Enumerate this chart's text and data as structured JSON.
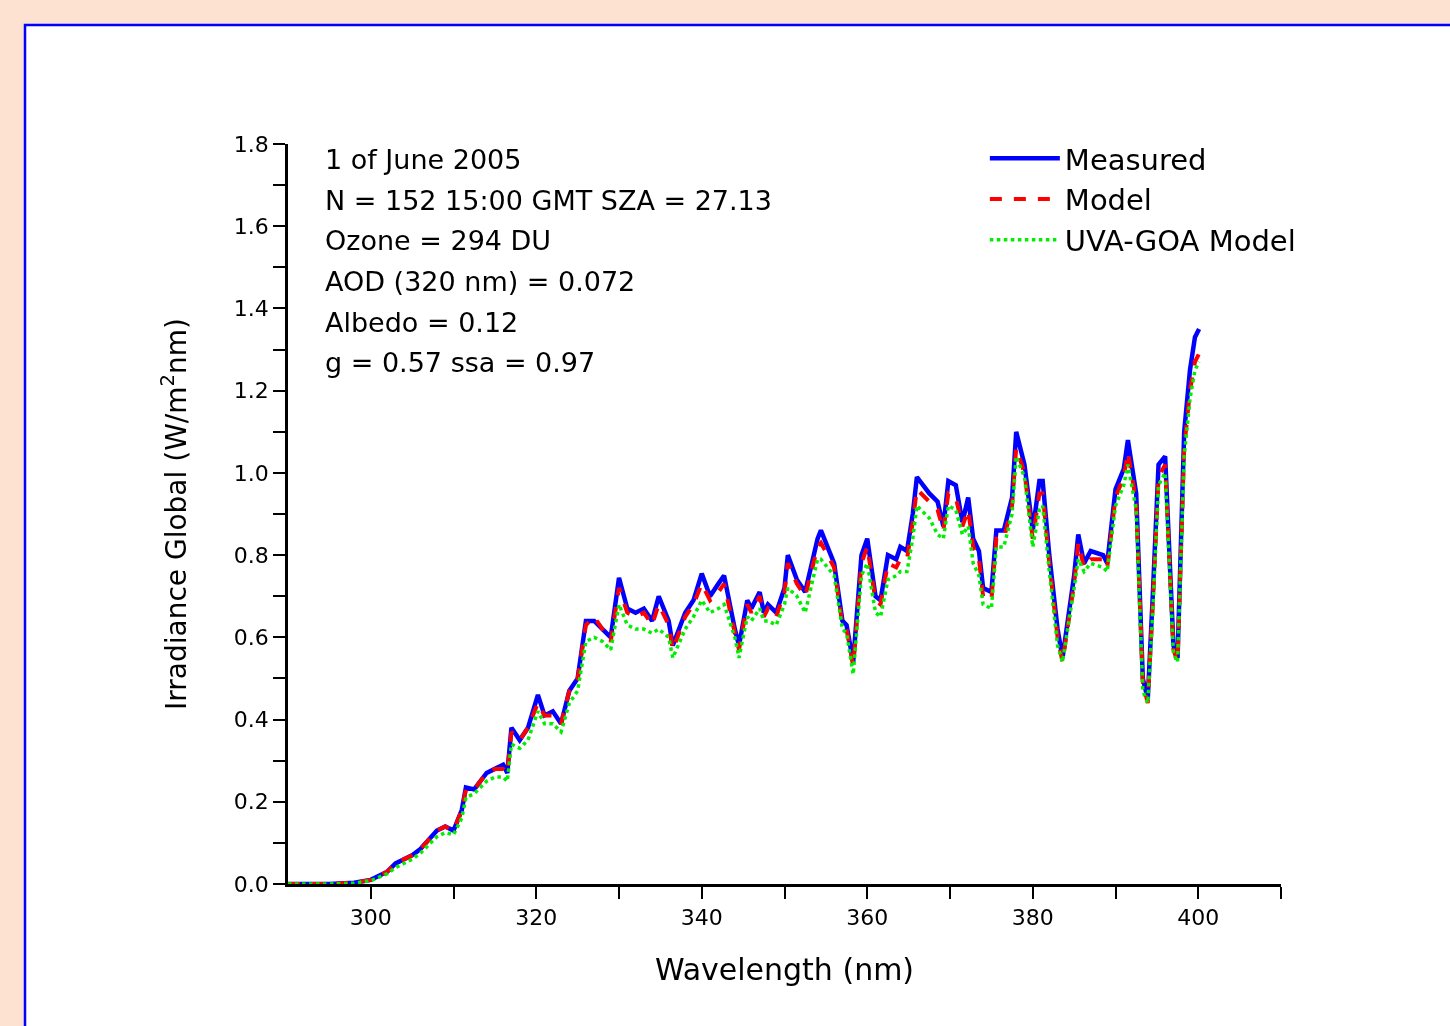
{
  "chart_data": {
    "type": "line",
    "xlabel": "Wavelength (nm)",
    "ylabel": "Irradiance Global (W/m$^{2}$nm)",
    "annotations": [
      "1 of June 2005",
      "N = 152 15:00 GMT SZA = 27.13",
      "Ozone = 294 DU",
      "AOD (320 nm) = 0.072",
      "Albedo = 0.12",
      "g = 0.57 ssa = 0.97"
    ],
    "x": [
      290,
      295,
      298,
      300,
      302,
      303,
      305,
      306,
      308,
      309,
      310,
      311,
      311.5,
      312.5,
      314,
      315,
      316,
      316.5,
      317,
      318,
      319,
      320.2,
      321,
      322,
      323,
      324,
      325,
      326,
      327,
      328,
      329,
      330,
      331,
      332,
      333,
      334,
      334.8,
      336,
      336.5,
      338,
      339,
      340,
      341,
      342,
      342.7,
      344,
      344.5,
      345.5,
      346,
      347,
      347.5,
      348,
      349,
      350,
      350.4,
      351.5,
      352.5,
      354,
      354.4,
      356,
      357,
      357.5,
      358.3,
      359.3,
      360,
      361,
      361.6,
      362.5,
      363.5,
      364,
      364.8,
      365.5,
      366,
      367.5,
      368.5,
      369.2,
      369.8,
      370.7,
      371.5,
      372.2,
      372.8,
      373.5,
      374,
      375,
      375.6,
      376.5,
      377.5,
      378,
      379,
      380,
      380.8,
      381.2,
      382,
      383,
      383.6,
      385,
      385.5,
      386.2,
      387,
      388.5,
      389,
      390,
      391,
      391.5,
      392.5,
      393.3,
      393.9,
      394.5,
      395.2,
      396,
      397,
      397.5,
      398.3,
      399,
      399.6,
      400.1
    ],
    "series": [
      {
        "name": "Measured",
        "color": "#0000ff",
        "line_style": "solid",
        "values": [
          0,
          0,
          0.003,
          0.01,
          0.03,
          0.05,
          0.07,
          0.085,
          0.13,
          0.14,
          0.13,
          0.18,
          0.235,
          0.23,
          0.27,
          0.28,
          0.29,
          0.27,
          0.38,
          0.35,
          0.38,
          0.46,
          0.41,
          0.42,
          0.39,
          0.47,
          0.5,
          0.64,
          0.64,
          0.62,
          0.6,
          0.745,
          0.67,
          0.66,
          0.67,
          0.64,
          0.7,
          0.64,
          0.58,
          0.66,
          0.69,
          0.755,
          0.7,
          0.73,
          0.75,
          0.62,
          0.58,
          0.69,
          0.67,
          0.71,
          0.66,
          0.68,
          0.66,
          0.72,
          0.8,
          0.74,
          0.71,
          0.84,
          0.86,
          0.78,
          0.64,
          0.63,
          0.54,
          0.8,
          0.84,
          0.7,
          0.69,
          0.8,
          0.79,
          0.82,
          0.81,
          0.9,
          0.99,
          0.95,
          0.93,
          0.87,
          0.98,
          0.97,
          0.88,
          0.94,
          0.84,
          0.81,
          0.72,
          0.71,
          0.86,
          0.86,
          0.94,
          1.1,
          1.02,
          0.86,
          0.98,
          0.98,
          0.8,
          0.62,
          0.55,
          0.75,
          0.85,
          0.78,
          0.81,
          0.8,
          0.78,
          0.96,
          1.01,
          1.08,
          0.95,
          0.5,
          0.45,
          0.7,
          1.02,
          1.04,
          0.58,
          0.55,
          1.1,
          1.25,
          1.33,
          1.35
        ]
      },
      {
        "name": "Model",
        "color": "#ff0000",
        "line_style": "dashed",
        "values": [
          0,
          0,
          0.003,
          0.01,
          0.03,
          0.05,
          0.07,
          0.085,
          0.13,
          0.14,
          0.13,
          0.18,
          0.23,
          0.23,
          0.27,
          0.28,
          0.28,
          0.27,
          0.37,
          0.35,
          0.38,
          0.44,
          0.41,
          0.41,
          0.39,
          0.47,
          0.5,
          0.63,
          0.65,
          0.62,
          0.59,
          0.72,
          0.66,
          0.65,
          0.66,
          0.63,
          0.68,
          0.63,
          0.57,
          0.65,
          0.68,
          0.73,
          0.69,
          0.71,
          0.73,
          0.61,
          0.57,
          0.68,
          0.66,
          0.7,
          0.65,
          0.67,
          0.65,
          0.71,
          0.78,
          0.73,
          0.7,
          0.82,
          0.83,
          0.77,
          0.63,
          0.62,
          0.53,
          0.78,
          0.82,
          0.69,
          0.68,
          0.78,
          0.77,
          0.79,
          0.79,
          0.88,
          0.96,
          0.93,
          0.91,
          0.86,
          0.95,
          0.94,
          0.87,
          0.91,
          0.82,
          0.79,
          0.7,
          0.69,
          0.84,
          0.84,
          0.92,
          1.06,
          1.0,
          0.84,
          0.95,
          0.95,
          0.78,
          0.6,
          0.54,
          0.73,
          0.83,
          0.77,
          0.79,
          0.79,
          0.77,
          0.94,
          0.99,
          1.05,
          0.93,
          0.49,
          0.44,
          0.68,
          0.99,
          1.02,
          0.57,
          0.54,
          1.06,
          1.2,
          1.27,
          1.29
        ]
      },
      {
        "name": "UVA-GOA Model",
        "color": "#00ee00",
        "line_style": "dotted",
        "values": [
          0,
          0,
          0.002,
          0.008,
          0.025,
          0.04,
          0.06,
          0.075,
          0.115,
          0.125,
          0.12,
          0.16,
          0.21,
          0.22,
          0.25,
          0.26,
          0.26,
          0.25,
          0.34,
          0.33,
          0.35,
          0.42,
          0.39,
          0.39,
          0.37,
          0.44,
          0.47,
          0.59,
          0.6,
          0.59,
          0.57,
          0.68,
          0.63,
          0.62,
          0.62,
          0.61,
          0.62,
          0.6,
          0.55,
          0.62,
          0.65,
          0.69,
          0.66,
          0.67,
          0.68,
          0.6,
          0.55,
          0.65,
          0.64,
          0.67,
          0.64,
          0.64,
          0.63,
          0.68,
          0.72,
          0.7,
          0.66,
          0.79,
          0.79,
          0.75,
          0.62,
          0.61,
          0.51,
          0.75,
          0.78,
          0.66,
          0.65,
          0.74,
          0.75,
          0.76,
          0.76,
          0.84,
          0.92,
          0.89,
          0.85,
          0.84,
          0.92,
          0.91,
          0.85,
          0.87,
          0.78,
          0.75,
          0.68,
          0.67,
          0.82,
          0.82,
          0.9,
          1.04,
          0.99,
          0.82,
          0.91,
          0.92,
          0.76,
          0.58,
          0.54,
          0.72,
          0.79,
          0.76,
          0.78,
          0.77,
          0.76,
          0.92,
          0.97,
          1.02,
          0.91,
          0.47,
          0.44,
          0.66,
          0.97,
          1.0,
          0.56,
          0.54,
          1.04,
          1.18,
          1.25,
          1.27
        ]
      }
    ],
    "xlim": [
      290,
      410
    ],
    "xticks": [
      300,
      {
        "value": 310,
        "label": null
      },
      320,
      {
        "value": 330,
        "label": null
      },
      340,
      {
        "value": 350,
        "label": null
      },
      360,
      {
        "value": 370,
        "label": null
      },
      380,
      {
        "value": 390,
        "label": null
      },
      400,
      {
        "value": 410,
        "label": null
      }
    ],
    "ylim": [
      0,
      1.8
    ],
    "yticks": [
      {
        "value": 0,
        "label": "0.0"
      },
      {
        "value": 0.1,
        "label": null
      },
      {
        "value": 0.2,
        "label": "0.2"
      },
      {
        "value": 0.3,
        "label": null
      },
      {
        "value": 0.4,
        "label": "0.4"
      },
      {
        "value": 0.5,
        "label": null
      },
      {
        "value": 0.6,
        "label": "0.6"
      },
      {
        "value": 0.7,
        "label": null
      },
      {
        "value": 0.8,
        "label": "0.8"
      },
      {
        "value": 0.9,
        "label": null
      },
      {
        "value": 1.0,
        "label": "1.0"
      },
      {
        "value": 1.1,
        "label": null
      },
      {
        "value": 1.2,
        "label": "1.2"
      },
      {
        "value": 1.3,
        "label": null
      },
      {
        "value": 1.4,
        "label": "1.4"
      },
      {
        "value": 1.5,
        "label": null
      },
      {
        "value": 1.6,
        "label": "1.6"
      },
      {
        "value": 1.7,
        "label": null
      },
      {
        "value": 1.8,
        "label": "1.8"
      }
    ],
    "legend": "top right"
  }
}
